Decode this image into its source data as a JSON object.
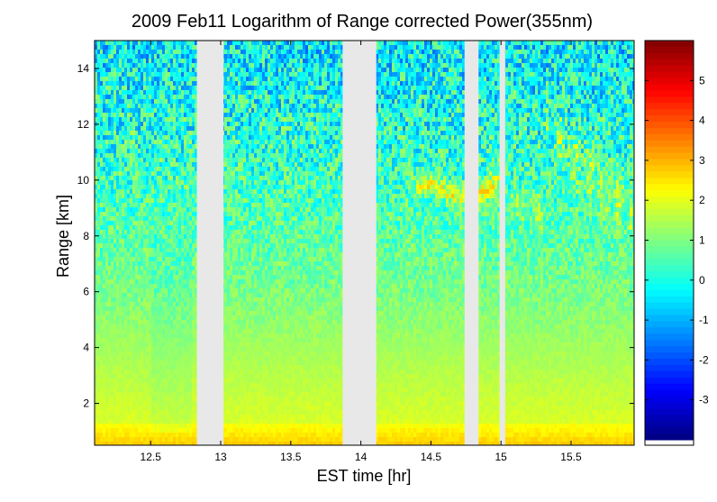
{
  "chart_data": {
    "type": "heatmap",
    "title": "2009 Feb11  Logarithm of Range corrected Power(355nm)",
    "xlabel": "EST time [hr]",
    "ylabel": "Range [km]",
    "xlim": [
      12.1,
      15.95
    ],
    "ylim": [
      0.5,
      15
    ],
    "xticks": [
      12.5,
      13,
      13.5,
      14,
      14.5,
      15,
      15.5
    ],
    "xtick_labels": [
      "12.5",
      "13",
      "13.5",
      "14",
      "14.5",
      "15",
      "15.5"
    ],
    "yticks": [
      2,
      4,
      6,
      8,
      10,
      12,
      14
    ],
    "ytick_labels": [
      "2",
      "4",
      "6",
      "8",
      "10",
      "12",
      "14"
    ],
    "colorbar": {
      "colormap": "jet",
      "limits": [
        -4,
        6
      ],
      "ticks": [
        -3,
        -2,
        -1,
        0,
        1,
        2,
        3,
        4,
        5
      ],
      "tick_labels": [
        "-3",
        "-2",
        "-1",
        "0",
        "1",
        "2",
        "3",
        "4",
        "5"
      ]
    },
    "data_gaps_hr": [
      [
        12.83,
        13.02
      ],
      [
        13.87,
        14.11
      ],
      [
        14.74,
        14.84
      ],
      [
        14.99,
        15.03
      ]
    ],
    "features": [
      {
        "kind": "near-surface layer",
        "range_km": [
          0.5,
          1.2
        ],
        "approx_log_power": 2.5
      },
      {
        "kind": "boundary layer aerosol",
        "range_km": [
          1.2,
          6
        ],
        "approx_log_power": [
          1.8,
          0.8
        ]
      },
      {
        "kind": "cirrus",
        "time_hr": [
          14.35,
          15.0
        ],
        "range_km": [
          9.3,
          11.0
        ],
        "approx_log_power": 2.0
      },
      {
        "kind": "cirrus",
        "time_hr": [
          15.3,
          15.92
        ],
        "range_km": [
          8.5,
          12.0
        ],
        "approx_log_power": 1.6
      }
    ]
  },
  "style": {
    "gap_color": "#e8e8e8",
    "background": "#ffffff"
  }
}
